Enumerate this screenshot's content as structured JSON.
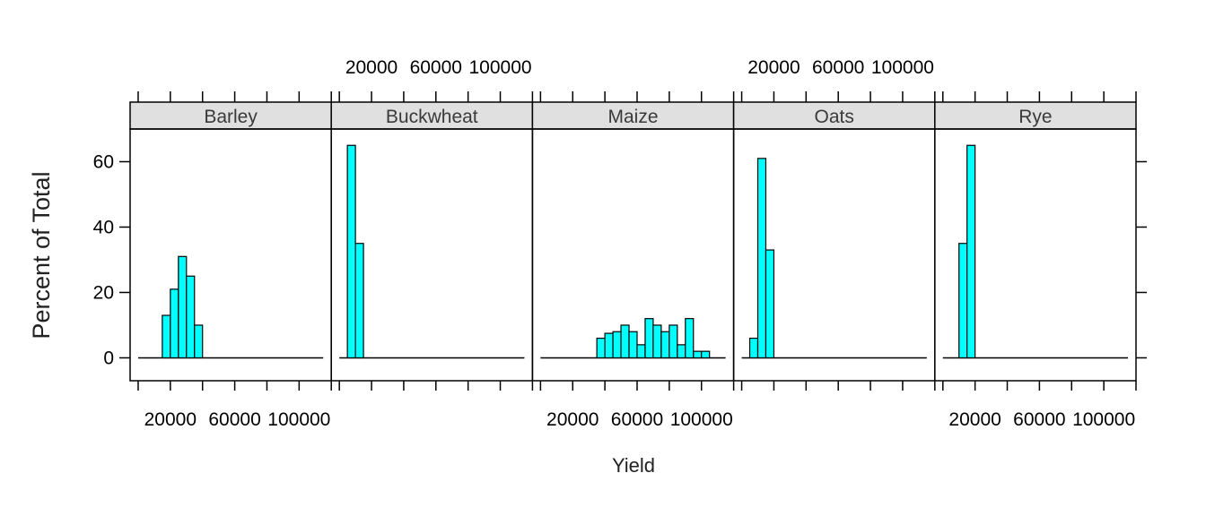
{
  "chart_data": {
    "type": "bar",
    "chart_kind": "histogram",
    "layout": "lattice panels, 1 row x 5 columns",
    "xlabel": "Yield",
    "ylabel": "Percent of Total",
    "xlim": [
      -5000,
      120000
    ],
    "ylim": [
      -7,
      70
    ],
    "bin_width": 5000,
    "x_ticks": [
      0,
      20000,
      40000,
      60000,
      80000,
      100000,
      120000
    ],
    "x_tick_labels": [
      "20000",
      "60000",
      "100000"
    ],
    "x_tick_label_values": [
      20000,
      60000,
      100000
    ],
    "y_ticks": [
      0,
      20,
      40,
      60
    ],
    "y_tick_labels": [
      "0",
      "20",
      "40",
      "60"
    ],
    "grid": false,
    "colors": {
      "bar_fill": "#00FFFF",
      "bar_stroke": "#000000",
      "strip_bg": "#E0E0E0",
      "frame": "#000000"
    },
    "panels": [
      {
        "name": "Barley",
        "bins": [
          {
            "x0": 15000,
            "x1": 20000,
            "value": 13
          },
          {
            "x0": 20000,
            "x1": 25000,
            "value": 21
          },
          {
            "x0": 25000,
            "x1": 30000,
            "value": 31
          },
          {
            "x0": 30000,
            "x1": 35000,
            "value": 25
          },
          {
            "x0": 35000,
            "x1": 40000,
            "value": 10
          }
        ]
      },
      {
        "name": "Buckwheat",
        "bins": [
          {
            "x0": 5000,
            "x1": 10000,
            "value": 65
          },
          {
            "x0": 10000,
            "x1": 15000,
            "value": 35
          }
        ]
      },
      {
        "name": "Maize",
        "bins": [
          {
            "x0": 35000,
            "x1": 40000,
            "value": 6
          },
          {
            "x0": 40000,
            "x1": 45000,
            "value": 7.5
          },
          {
            "x0": 45000,
            "x1": 50000,
            "value": 8
          },
          {
            "x0": 50000,
            "x1": 55000,
            "value": 10
          },
          {
            "x0": 55000,
            "x1": 60000,
            "value": 8
          },
          {
            "x0": 60000,
            "x1": 65000,
            "value": 4
          },
          {
            "x0": 65000,
            "x1": 70000,
            "value": 12
          },
          {
            "x0": 70000,
            "x1": 75000,
            "value": 10
          },
          {
            "x0": 75000,
            "x1": 80000,
            "value": 8
          },
          {
            "x0": 80000,
            "x1": 85000,
            "value": 10
          },
          {
            "x0": 85000,
            "x1": 90000,
            "value": 4
          },
          {
            "x0": 90000,
            "x1": 95000,
            "value": 12
          },
          {
            "x0": 95000,
            "x1": 100000,
            "value": 2
          },
          {
            "x0": 100000,
            "x1": 105000,
            "value": 2
          }
        ]
      },
      {
        "name": "Oats",
        "bins": [
          {
            "x0": 5000,
            "x1": 10000,
            "value": 6
          },
          {
            "x0": 10000,
            "x1": 15000,
            "value": 61
          },
          {
            "x0": 15000,
            "x1": 20000,
            "value": 33
          }
        ]
      },
      {
        "name": "Rye",
        "bins": [
          {
            "x0": 10000,
            "x1": 15000,
            "value": 35
          },
          {
            "x0": 15000,
            "x1": 20000,
            "value": 65
          }
        ]
      }
    ]
  }
}
